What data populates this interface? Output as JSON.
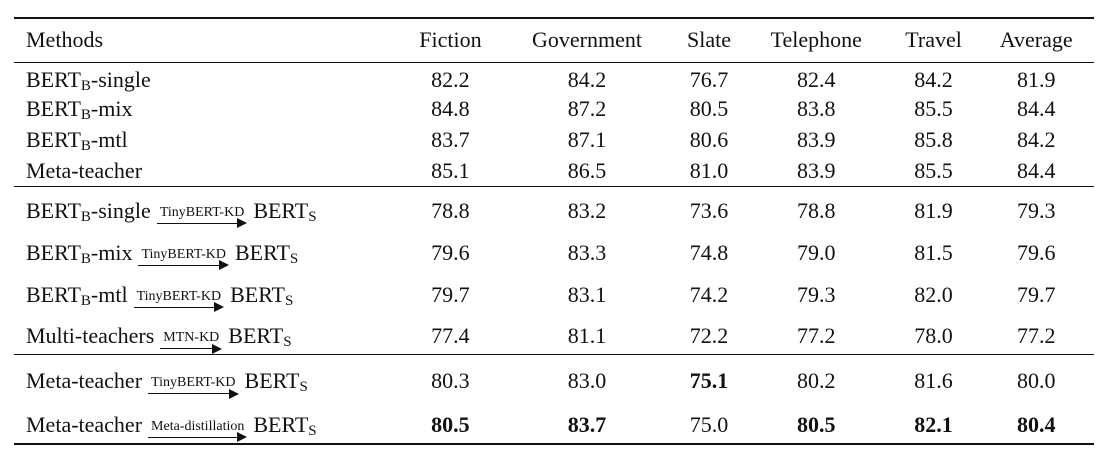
{
  "table": {
    "header": [
      "Methods",
      "Fiction",
      "Government",
      "Slate",
      "Telephone",
      "Travel",
      "Average"
    ],
    "sections": [
      {
        "rows": [
          {
            "method": [
              {
                "text": "BERT"
              },
              {
                "sub": "B"
              },
              {
                "text": "-single"
              }
            ],
            "values": [
              "82.2",
              "84.2",
              "76.7",
              "82.4",
              "84.2",
              "81.9"
            ],
            "bold": [
              false,
              false,
              false,
              false,
              false,
              false
            ]
          },
          {
            "method": [
              {
                "text": "BERT"
              },
              {
                "sub": "B"
              },
              {
                "text": "-mix"
              }
            ],
            "values": [
              "84.8",
              "87.2",
              "80.5",
              "83.8",
              "85.5",
              "84.4"
            ],
            "bold": [
              false,
              false,
              false,
              false,
              false,
              false
            ]
          },
          {
            "method": [
              {
                "text": "BERT"
              },
              {
                "sub": "B"
              },
              {
                "text": "-mtl"
              }
            ],
            "values": [
              "83.7",
              "87.1",
              "80.6",
              "83.9",
              "85.8",
              "84.2"
            ],
            "bold": [
              false,
              false,
              false,
              false,
              false,
              false
            ]
          },
          {
            "method": [
              {
                "text": "Meta-teacher"
              }
            ],
            "values": [
              "85.1",
              "86.5",
              "81.0",
              "83.9",
              "85.5",
              "84.4"
            ],
            "bold": [
              false,
              false,
              false,
              false,
              false,
              false
            ]
          }
        ]
      },
      {
        "rows": [
          {
            "method": [
              {
                "text": "BERT"
              },
              {
                "sub": "B"
              },
              {
                "text": "-single"
              },
              {
                "arrow": "TinyBERT-KD"
              },
              {
                "text": "BERT"
              },
              {
                "sub": "S"
              }
            ],
            "values": [
              "78.8",
              "83.2",
              "73.6",
              "78.8",
              "81.9",
              "79.3"
            ],
            "bold": [
              false,
              false,
              false,
              false,
              false,
              false
            ]
          },
          {
            "method": [
              {
                "text": "BERT"
              },
              {
                "sub": "B"
              },
              {
                "text": "-mix"
              },
              {
                "arrow": "TinyBERT-KD"
              },
              {
                "text": "BERT"
              },
              {
                "sub": "S"
              }
            ],
            "values": [
              "79.6",
              "83.3",
              "74.8",
              "79.0",
              "81.5",
              "79.6"
            ],
            "bold": [
              false,
              false,
              false,
              false,
              false,
              false
            ]
          },
          {
            "method": [
              {
                "text": "BERT"
              },
              {
                "sub": "B"
              },
              {
                "text": "-mtl"
              },
              {
                "arrow": "TinyBERT-KD"
              },
              {
                "text": "BERT"
              },
              {
                "sub": "S"
              }
            ],
            "values": [
              "79.7",
              "83.1",
              "74.2",
              "79.3",
              "82.0",
              "79.7"
            ],
            "bold": [
              false,
              false,
              false,
              false,
              false,
              false
            ]
          },
          {
            "method": [
              {
                "text": "Multi-teachers"
              },
              {
                "arrow": "MTN-KD"
              },
              {
                "text": "BERT"
              },
              {
                "sub": "S"
              }
            ],
            "values": [
              "77.4",
              "81.1",
              "72.2",
              "77.2",
              "78.0",
              "77.2"
            ],
            "bold": [
              false,
              false,
              false,
              false,
              false,
              false
            ]
          }
        ]
      },
      {
        "rows": [
          {
            "method": [
              {
                "text": "Meta-teacher"
              },
              {
                "arrow": "TinyBERT-KD"
              },
              {
                "text": "BERT"
              },
              {
                "sub": "S"
              }
            ],
            "values": [
              "80.3",
              "83.0",
              "75.1",
              "80.2",
              "81.6",
              "80.0"
            ],
            "bold": [
              false,
              false,
              true,
              false,
              false,
              false
            ]
          },
          {
            "method": [
              {
                "text": "Meta-teacher"
              },
              {
                "arrow": "Meta-distillation"
              },
              {
                "text": "BERT"
              },
              {
                "sub": "S"
              }
            ],
            "values": [
              "80.5",
              "83.7",
              "75.0",
              "80.5",
              "82.1",
              "80.4"
            ],
            "bold": [
              true,
              true,
              false,
              true,
              true,
              true
            ]
          }
        ]
      }
    ]
  }
}
